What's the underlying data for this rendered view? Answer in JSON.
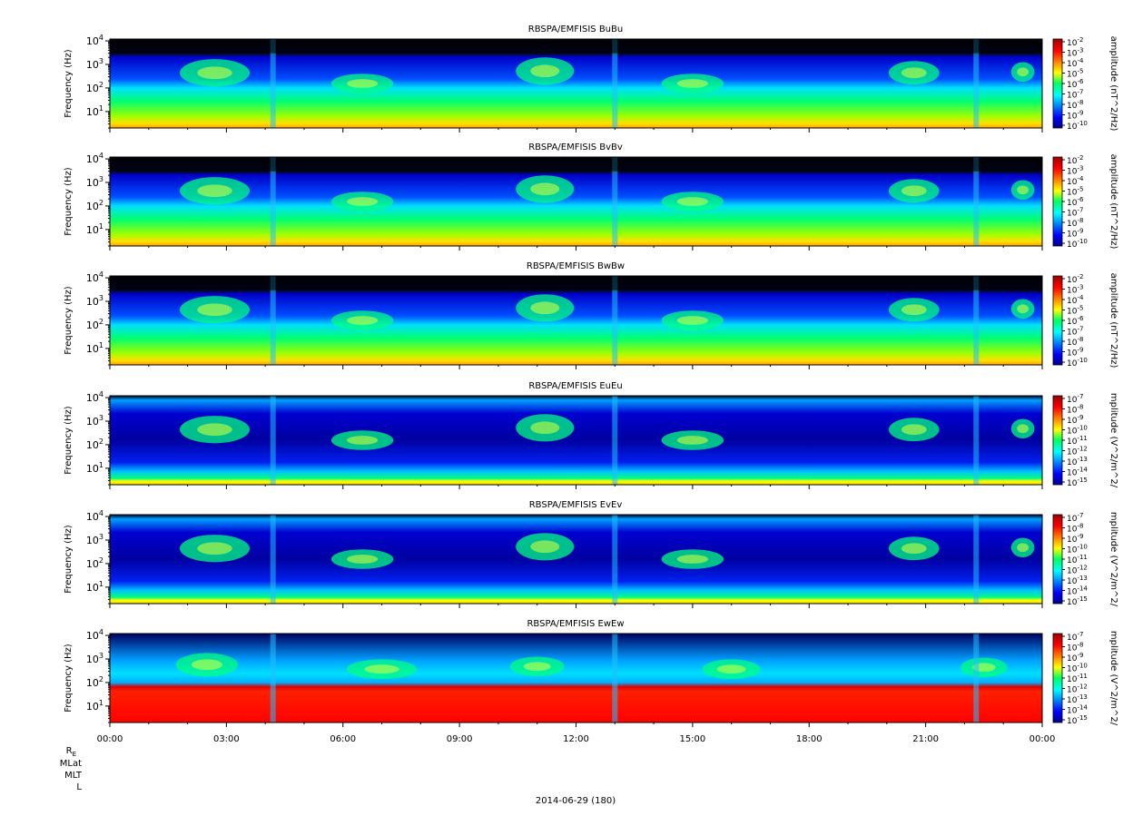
{
  "figure": {
    "x_tick_labels": [
      "00:00",
      "03:00",
      "06:00",
      "09:00",
      "12:00",
      "15:00",
      "18:00",
      "21:00",
      "00:00"
    ],
    "ephemeris_labels": [
      "R",
      "E",
      "MLat",
      "MLT",
      "L"
    ],
    "date_label": "2014-06-29 (180)"
  },
  "chart_data": [
    {
      "type": "heatmap",
      "title": "RBSPA/EMFISIS  BuBu",
      "ylabel": "Frequency (Hz)",
      "yscale": "log",
      "ylim": [
        2,
        12000
      ],
      "y_ticks": [
        10,
        100,
        1000,
        10000
      ],
      "y_tick_labels": [
        {
          "b": "10",
          "e": "1"
        },
        {
          "b": "10",
          "e": "2"
        },
        {
          "b": "10",
          "e": "3"
        },
        {
          "b": "10",
          "e": "4"
        }
      ],
      "xlim": [
        "2014-06-29 00:00",
        "2014-06-30 00:00"
      ],
      "x_ticks": [
        "00:00",
        "03:00",
        "06:00",
        "09:00",
        "12:00",
        "15:00",
        "18:00",
        "21:00",
        "00:00"
      ],
      "colorbar": {
        "label": "amplitude (nT^2/Hz)",
        "scale": "log",
        "range_exp": [
          -10,
          -2
        ],
        "tick_labels": [
          {
            "b": "10",
            "e": "-2"
          },
          {
            "b": "10",
            "e": "-3"
          },
          {
            "b": "10",
            "e": "-4"
          },
          {
            "b": "10",
            "e": "-5"
          },
          {
            "b": "10",
            "e": "-6"
          },
          {
            "b": "10",
            "e": "-7"
          },
          {
            "b": "10",
            "e": "-8"
          },
          {
            "b": "10",
            "e": "-9"
          },
          {
            "b": "10",
            "e": "-10"
          }
        ]
      }
    },
    {
      "type": "heatmap",
      "title": "RBSPA/EMFISIS  BvBv",
      "ylabel": "Frequency (Hz)",
      "yscale": "log",
      "ylim": [
        2,
        12000
      ],
      "y_ticks": [
        10,
        100,
        1000,
        10000
      ],
      "y_tick_labels": [
        {
          "b": "10",
          "e": "1"
        },
        {
          "b": "10",
          "e": "2"
        },
        {
          "b": "10",
          "e": "3"
        },
        {
          "b": "10",
          "e": "4"
        }
      ],
      "xlim": [
        "2014-06-29 00:00",
        "2014-06-30 00:00"
      ],
      "x_ticks": [
        "00:00",
        "03:00",
        "06:00",
        "09:00",
        "12:00",
        "15:00",
        "18:00",
        "21:00",
        "00:00"
      ],
      "colorbar": {
        "label": "amplitude (nT^2/Hz)",
        "scale": "log",
        "range_exp": [
          -10,
          -2
        ],
        "tick_labels": [
          {
            "b": "10",
            "e": "-2"
          },
          {
            "b": "10",
            "e": "-3"
          },
          {
            "b": "10",
            "e": "-4"
          },
          {
            "b": "10",
            "e": "-5"
          },
          {
            "b": "10",
            "e": "-6"
          },
          {
            "b": "10",
            "e": "-7"
          },
          {
            "b": "10",
            "e": "-8"
          },
          {
            "b": "10",
            "e": "-9"
          },
          {
            "b": "10",
            "e": "-10"
          }
        ]
      }
    },
    {
      "type": "heatmap",
      "title": "RBSPA/EMFISIS  BwBw",
      "ylabel": "Frequency (Hz)",
      "yscale": "log",
      "ylim": [
        2,
        12000
      ],
      "y_ticks": [
        10,
        100,
        1000,
        10000
      ],
      "y_tick_labels": [
        {
          "b": "10",
          "e": "1"
        },
        {
          "b": "10",
          "e": "2"
        },
        {
          "b": "10",
          "e": "3"
        },
        {
          "b": "10",
          "e": "4"
        }
      ],
      "xlim": [
        "2014-06-29 00:00",
        "2014-06-30 00:00"
      ],
      "x_ticks": [
        "00:00",
        "03:00",
        "06:00",
        "09:00",
        "12:00",
        "15:00",
        "18:00",
        "21:00",
        "00:00"
      ],
      "colorbar": {
        "label": "amplitude (nT^2/Hz)",
        "scale": "log",
        "range_exp": [
          -10,
          -2
        ],
        "tick_labels": [
          {
            "b": "10",
            "e": "-2"
          },
          {
            "b": "10",
            "e": "-3"
          },
          {
            "b": "10",
            "e": "-4"
          },
          {
            "b": "10",
            "e": "-5"
          },
          {
            "b": "10",
            "e": "-6"
          },
          {
            "b": "10",
            "e": "-7"
          },
          {
            "b": "10",
            "e": "-8"
          },
          {
            "b": "10",
            "e": "-9"
          },
          {
            "b": "10",
            "e": "-10"
          }
        ]
      }
    },
    {
      "type": "heatmap",
      "title": "RBSPA/EMFISIS  EuEu",
      "ylabel": "Frequency (Hz)",
      "yscale": "log",
      "ylim": [
        2,
        12000
      ],
      "y_ticks": [
        10,
        100,
        1000,
        10000
      ],
      "y_tick_labels": [
        {
          "b": "10",
          "e": "1"
        },
        {
          "b": "10",
          "e": "2"
        },
        {
          "b": "10",
          "e": "3"
        },
        {
          "b": "10",
          "e": "4"
        }
      ],
      "xlim": [
        "2014-06-29 00:00",
        "2014-06-30 00:00"
      ],
      "x_ticks": [
        "00:00",
        "03:00",
        "06:00",
        "09:00",
        "12:00",
        "15:00",
        "18:00",
        "21:00",
        "00:00"
      ],
      "colorbar": {
        "label": "mplitude (V^2/m^2/",
        "scale": "log",
        "range_exp": [
          -15,
          -7
        ],
        "tick_labels": [
          {
            "b": "10",
            "e": "-7"
          },
          {
            "b": "10",
            "e": "-8"
          },
          {
            "b": "10",
            "e": "-9"
          },
          {
            "b": "10",
            "e": "-10"
          },
          {
            "b": "10",
            "e": "-11"
          },
          {
            "b": "10",
            "e": "-12"
          },
          {
            "b": "10",
            "e": "-13"
          },
          {
            "b": "10",
            "e": "-14"
          },
          {
            "b": "10",
            "e": "-15"
          }
        ]
      }
    },
    {
      "type": "heatmap",
      "title": "RBSPA/EMFISIS  EvEv",
      "ylabel": "Frequency (Hz)",
      "yscale": "log",
      "ylim": [
        2,
        12000
      ],
      "y_ticks": [
        10,
        100,
        1000,
        10000
      ],
      "y_tick_labels": [
        {
          "b": "10",
          "e": "1"
        },
        {
          "b": "10",
          "e": "2"
        },
        {
          "b": "10",
          "e": "3"
        },
        {
          "b": "10",
          "e": "4"
        }
      ],
      "xlim": [
        "2014-06-29 00:00",
        "2014-06-30 00:00"
      ],
      "x_ticks": [
        "00:00",
        "03:00",
        "06:00",
        "09:00",
        "12:00",
        "15:00",
        "18:00",
        "21:00",
        "00:00"
      ],
      "colorbar": {
        "label": "mplitude (V^2/m^2/",
        "scale": "log",
        "range_exp": [
          -15,
          -7
        ],
        "tick_labels": [
          {
            "b": "10",
            "e": "-7"
          },
          {
            "b": "10",
            "e": "-8"
          },
          {
            "b": "10",
            "e": "-9"
          },
          {
            "b": "10",
            "e": "-10"
          },
          {
            "b": "10",
            "e": "-11"
          },
          {
            "b": "10",
            "e": "-12"
          },
          {
            "b": "10",
            "e": "-13"
          },
          {
            "b": "10",
            "e": "-14"
          },
          {
            "b": "10",
            "e": "-15"
          }
        ]
      }
    },
    {
      "type": "heatmap",
      "title": "RBSPA/EMFISIS  EwEw",
      "ylabel": "Frequency (Hz)",
      "yscale": "log",
      "ylim": [
        2,
        12000
      ],
      "y_ticks": [
        10,
        100,
        1000,
        10000
      ],
      "y_tick_labels": [
        {
          "b": "10",
          "e": "1"
        },
        {
          "b": "10",
          "e": "2"
        },
        {
          "b": "10",
          "e": "3"
        },
        {
          "b": "10",
          "e": "4"
        }
      ],
      "xlim": [
        "2014-06-29 00:00",
        "2014-06-30 00:00"
      ],
      "x_ticks": [
        "00:00",
        "03:00",
        "06:00",
        "09:00",
        "12:00",
        "15:00",
        "18:00",
        "21:00",
        "00:00"
      ],
      "colorbar": {
        "label": "mplitude (V^2/m^2/",
        "scale": "log",
        "range_exp": [
          -15,
          -7
        ],
        "tick_labels": [
          {
            "b": "10",
            "e": "-7"
          },
          {
            "b": "10",
            "e": "-8"
          },
          {
            "b": "10",
            "e": "-9"
          },
          {
            "b": "10",
            "e": "-10"
          },
          {
            "b": "10",
            "e": "-11"
          },
          {
            "b": "10",
            "e": "-12"
          },
          {
            "b": "10",
            "e": "-13"
          },
          {
            "b": "10",
            "e": "-14"
          },
          {
            "b": "10",
            "e": "-15"
          }
        ]
      }
    }
  ]
}
